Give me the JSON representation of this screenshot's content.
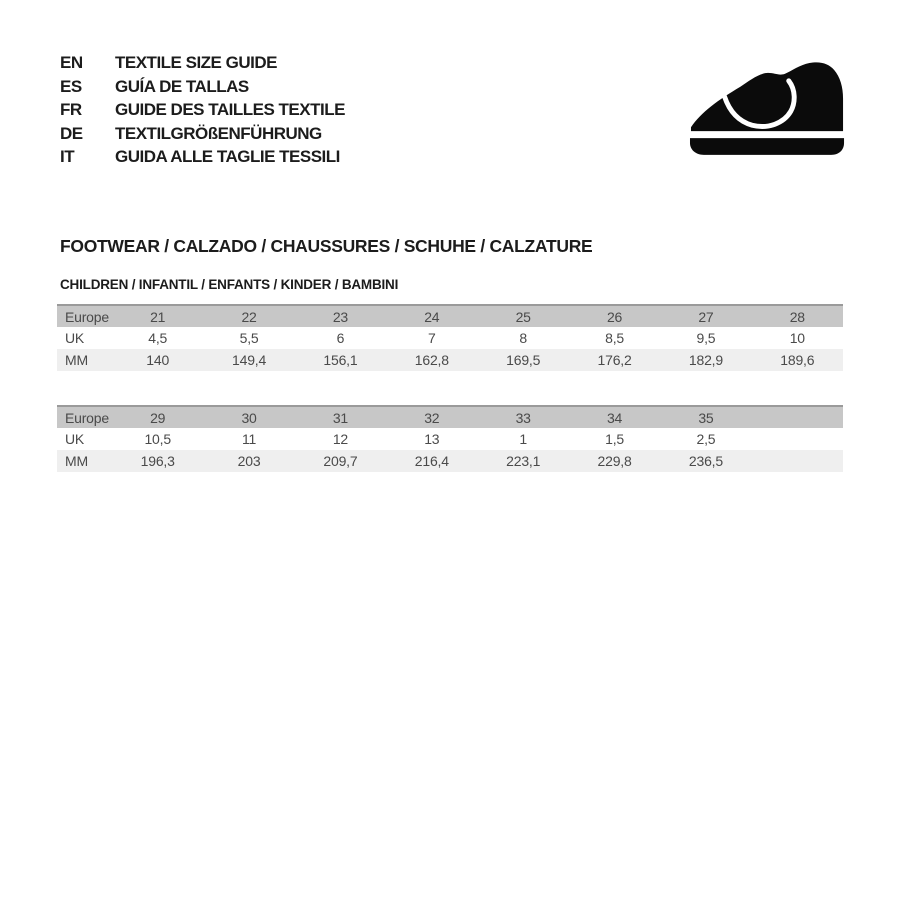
{
  "document": {
    "languages": [
      {
        "code": "EN",
        "title": "TEXTILE SIZE GUIDE"
      },
      {
        "code": "ES",
        "title": "GUÍA DE TALLAS"
      },
      {
        "code": "FR",
        "title": "GUIDE DES TAILLES TEXTILE"
      },
      {
        "code": "DE",
        "title": "TEXTILGRÖßENFÜHRUNG"
      },
      {
        "code": "IT",
        "title": "GUIDA ALLE TAGLIE TESSILI"
      }
    ],
    "icon": "children-shoe-icon",
    "section_title": "FOOTWEAR / CALZADO / CHAUSSURES / SCHUHE / CALZATURE",
    "section_subtitle": "CHILDREN / INFANTIL / ENFANTS / KINDER / BAMBINI",
    "size_tables": [
      {
        "rows": [
          {
            "label": "Europe",
            "values": [
              "21",
              "22",
              "23",
              "24",
              "25",
              "26",
              "27",
              "28"
            ]
          },
          {
            "label": "UK",
            "values": [
              "4,5",
              "5,5",
              "6",
              "7",
              "8",
              "8,5",
              "9,5",
              "10"
            ]
          },
          {
            "label": "MM",
            "values": [
              "140",
              "149,4",
              "156,1",
              "162,8",
              "169,5",
              "176,2",
              "182,9",
              "189,6"
            ]
          }
        ]
      },
      {
        "rows": [
          {
            "label": "Europe",
            "values": [
              "29",
              "30",
              "31",
              "32",
              "33",
              "34",
              "35",
              ""
            ]
          },
          {
            "label": "UK",
            "values": [
              "10,5",
              "11",
              "12",
              "13",
              "1",
              "1,5",
              "2,5",
              ""
            ]
          },
          {
            "label": "MM",
            "values": [
              "196,3",
              "203",
              "209,7",
              "216,4",
              "223,1",
              "229,8",
              "236,5",
              ""
            ]
          }
        ]
      }
    ],
    "colors": {
      "text": "#1c1c1c",
      "table_text": "#4a4a4a",
      "table_header_band": "#c7c7c7",
      "table_alt_band": "#efefef",
      "table_top_border": "#9a9a9a",
      "icon_black": "#0b0b0b"
    }
  }
}
